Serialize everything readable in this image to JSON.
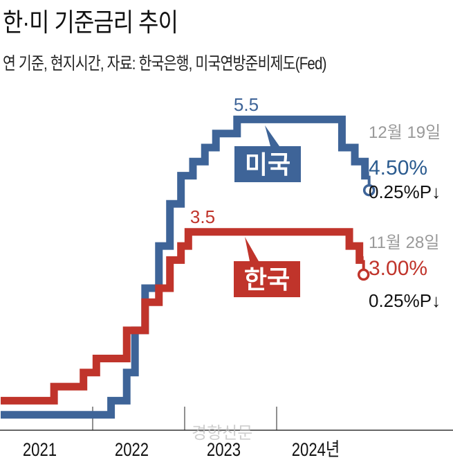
{
  "title": "한·미 기준금리 추이",
  "subtitle": "연 기준, 현지시간, 자료: 한국은행, 미국연방준비제도(Fed)",
  "watermark": "경향신문",
  "chart_data": {
    "type": "line",
    "step": true,
    "title": "한·미 기준금리 추이",
    "subtitle": "연 기준, 현지시간, 자료: 한국은행, 미국연방준비제도(Fed)",
    "xlabel": "",
    "ylabel": "%",
    "xlim": [
      2021.0,
      2025.0
    ],
    "ylim": [
      0,
      6
    ],
    "grid": false,
    "x_tick_labels": [
      "2021",
      "2022",
      "2023",
      "2024년"
    ],
    "x_tick_positions": [
      2021.5,
      2022.5,
      2023.5,
      2024.5
    ],
    "x_dividers": [
      2022.0,
      2023.0,
      2024.0
    ],
    "series": [
      {
        "name": "미국",
        "color": "#3e6498",
        "peak_label": "5.5",
        "peak_value": 5.5,
        "x": [
          2021.0,
          2022.2,
          2022.37,
          2022.46,
          2022.57,
          2022.72,
          2022.84,
          2022.96,
          2023.09,
          2023.22,
          2023.34,
          2023.57,
          2024.71,
          2024.85,
          2024.96
        ],
        "y": [
          0.25,
          0.5,
          1.0,
          1.75,
          2.5,
          3.25,
          4.0,
          4.5,
          4.75,
          5.0,
          5.25,
          5.5,
          5.0,
          4.75,
          4.5
        ],
        "end_x": 2024.96,
        "end_marker": "open-circle",
        "annotation": {
          "date": "12월 19일",
          "value": "4.50%",
          "change": "0.25%P↓"
        }
      },
      {
        "name": "한국",
        "color": "#c0342b",
        "peak_label": "3.5",
        "peak_value": 3.5,
        "x": [
          2021.0,
          2021.58,
          2021.9,
          2022.04,
          2022.37,
          2022.57,
          2022.72,
          2022.84,
          2022.96,
          2023.04,
          2024.79,
          2024.9
        ],
        "y": [
          0.5,
          0.75,
          1.0,
          1.25,
          1.75,
          2.25,
          2.5,
          3.0,
          3.25,
          3.5,
          3.25,
          3.0
        ],
        "end_x": 2024.9,
        "end_marker": "open-circle",
        "annotation": {
          "date": "11월 28일",
          "value": "3.00%",
          "change": "0.25%P↓"
        }
      }
    ]
  }
}
